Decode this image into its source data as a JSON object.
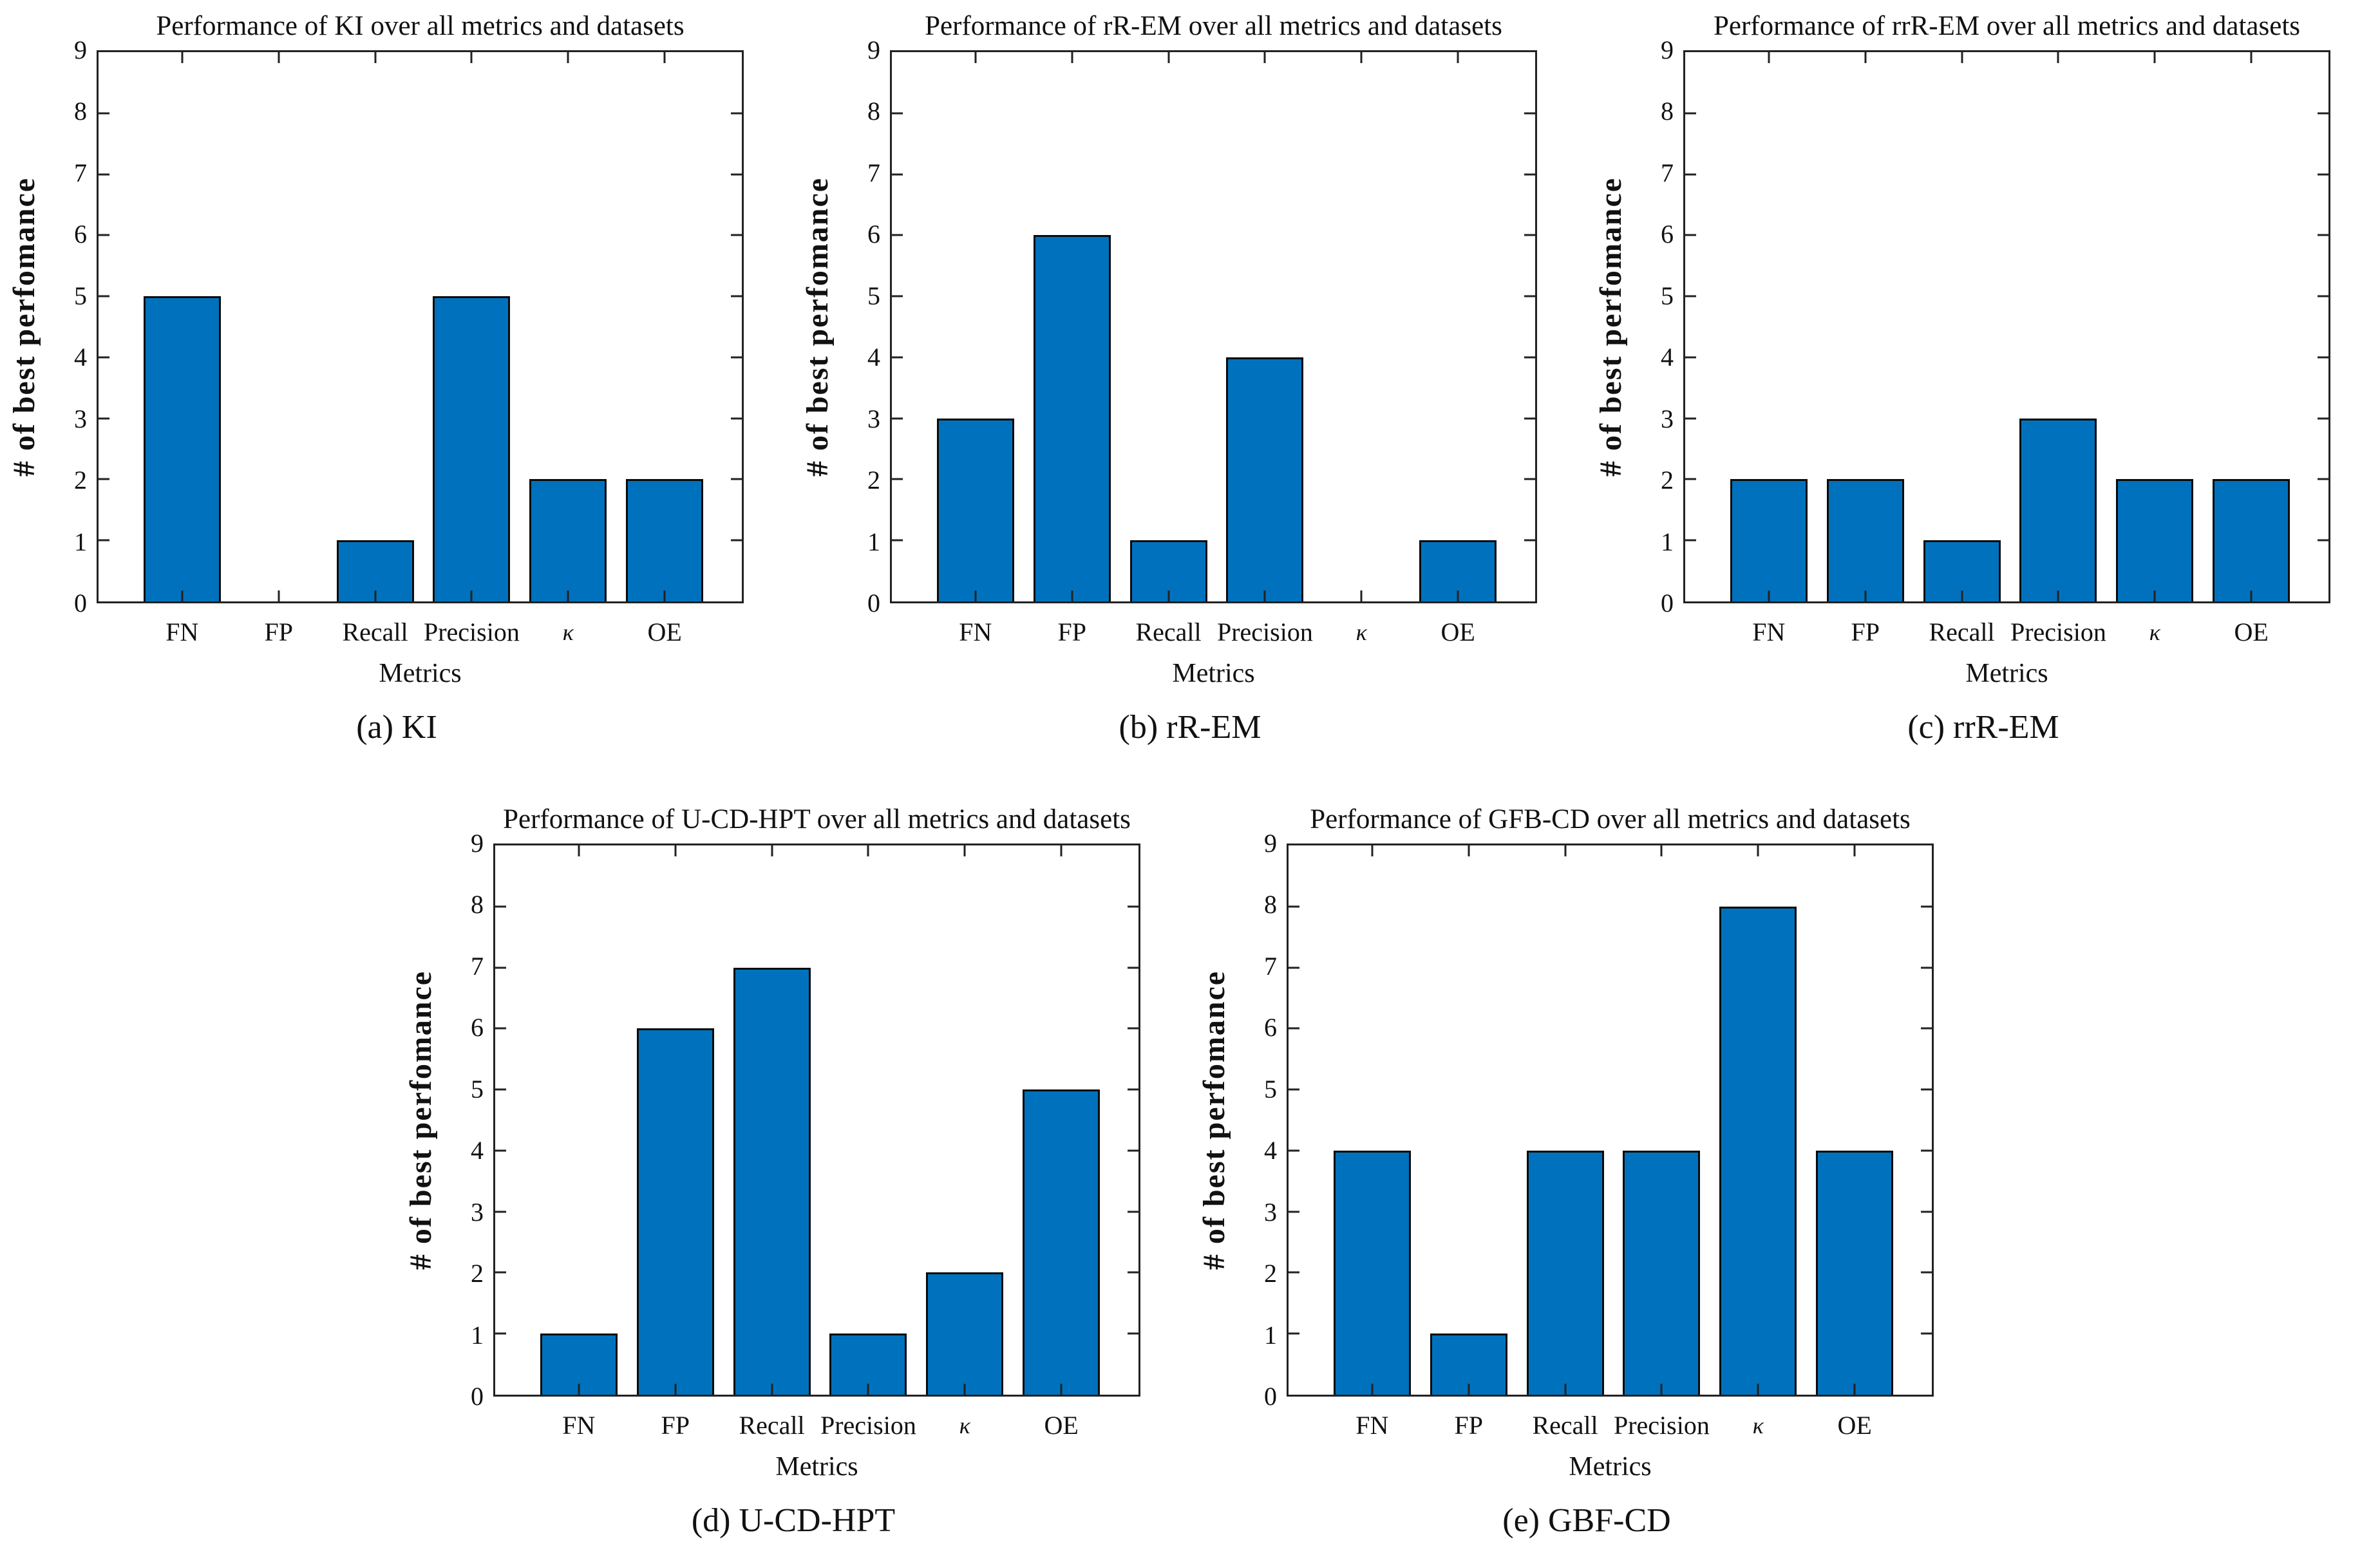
{
  "figure": {
    "ylabel": "# of best perfomance",
    "xlabel": "Metrics",
    "ymin": 0,
    "ymax": 9,
    "yticks": [
      0,
      1,
      2,
      3,
      4,
      5,
      6,
      7,
      8,
      9
    ],
    "bar_color": "#0072BD",
    "bar_edge_color": "#0a0a0a",
    "axis_color": "#222222",
    "categories": [
      "FN",
      "FP",
      "Recall",
      "Precision",
      "κ",
      "OE"
    ]
  },
  "chart_data": [
    {
      "type": "bar",
      "title": "Performance of KI over all metrics and datasets",
      "caption": "(a) KI",
      "categories": [
        "FN",
        "FP",
        "Recall",
        "Precision",
        "κ",
        "OE"
      ],
      "values": [
        5,
        0,
        1,
        5,
        2,
        2
      ],
      "xlabel": "Metrics",
      "ylabel": "# of best perfomance",
      "ylim": [
        0,
        9
      ],
      "grid": false,
      "legend": null
    },
    {
      "type": "bar",
      "title": "Performance of rR-EM over all metrics and datasets",
      "caption": "(b) rR-EM",
      "categories": [
        "FN",
        "FP",
        "Recall",
        "Precision",
        "κ",
        "OE"
      ],
      "values": [
        3,
        6,
        1,
        4,
        0,
        1
      ],
      "xlabel": "Metrics",
      "ylabel": "# of best perfomance",
      "ylim": [
        0,
        9
      ],
      "grid": false,
      "legend": null
    },
    {
      "type": "bar",
      "title": "Performance of rrR-EM over all metrics and datasets",
      "caption": "(c) rrR-EM",
      "categories": [
        "FN",
        "FP",
        "Recall",
        "Precision",
        "κ",
        "OE"
      ],
      "values": [
        2,
        2,
        1,
        3,
        2,
        2
      ],
      "xlabel": "Metrics",
      "ylabel": "# of best perfomance",
      "ylim": [
        0,
        9
      ],
      "grid": false,
      "legend": null
    },
    {
      "type": "bar",
      "title": "Performance of U-CD-HPT over all metrics and datasets",
      "caption": "(d) U-CD-HPT",
      "categories": [
        "FN",
        "FP",
        "Recall",
        "Precision",
        "κ",
        "OE"
      ],
      "values": [
        1,
        6,
        7,
        1,
        2,
        5
      ],
      "xlabel": "Metrics",
      "ylabel": "# of best perfomance",
      "ylim": [
        0,
        9
      ],
      "grid": false,
      "legend": null
    },
    {
      "type": "bar",
      "title": "Performance of GFB-CD over all metrics and datasets",
      "caption": "(e) GBF-CD",
      "categories": [
        "FN",
        "FP",
        "Recall",
        "Precision",
        "κ",
        "OE"
      ],
      "values": [
        4,
        1,
        4,
        4,
        8,
        4
      ],
      "xlabel": "Metrics",
      "ylabel": "# of best perfomance",
      "ylim": [
        0,
        9
      ],
      "grid": false,
      "legend": null
    }
  ]
}
